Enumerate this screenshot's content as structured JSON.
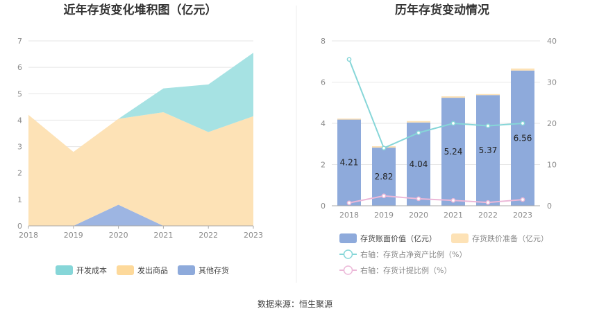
{
  "left_title": "近年存货变化堆积图（亿元）",
  "right_title": "历年存货变动情况",
  "source": "数据来源：恒生聚源",
  "chart_data": [
    {
      "type": "area",
      "stacked": true,
      "title": "近年存货变化堆积图（亿元）",
      "categories": [
        "2018",
        "2019",
        "2020",
        "2021",
        "2022",
        "2023"
      ],
      "ylim": [
        0,
        7
      ],
      "yticks": [
        "0",
        "1",
        "2",
        "3",
        "4",
        "5",
        "6",
        "7"
      ],
      "series": [
        {
          "name": "其他存货",
          "color": "#9db5e2",
          "values": [
            0,
            0,
            0.8,
            0,
            0,
            0
          ]
        },
        {
          "name": "发出商品",
          "color": "#fde2b6",
          "values": [
            4.2,
            2.8,
            3.25,
            4.3,
            3.55,
            4.15
          ]
        },
        {
          "name": "开发成本",
          "color": "#a6e2e3",
          "values": [
            0,
            0,
            0,
            0.9,
            1.8,
            2.4
          ]
        }
      ],
      "legend": [
        {
          "name": "开发成本",
          "color": "#86d6d8"
        },
        {
          "name": "发出商品",
          "color": "#fdd99b"
        },
        {
          "name": "其他存货",
          "color": "#8eaadb"
        }
      ],
      "grid": true,
      "legend_position": "bottom"
    },
    {
      "type": "bar",
      "title": "历年存货变动情况",
      "categories": [
        "2018",
        "2019",
        "2020",
        "2021",
        "2022",
        "2023"
      ],
      "ylim": [
        0,
        8
      ],
      "yticks": [
        "0",
        "2",
        "4",
        "6",
        "8"
      ],
      "y2lim": [
        0,
        40
      ],
      "y2ticks": [
        "0",
        "10",
        "20",
        "30",
        "40"
      ],
      "bar_series": [
        {
          "name": "存货账面价值（亿元）",
          "color": "#8eaadb",
          "values": [
            4.21,
            2.82,
            4.04,
            5.24,
            5.37,
            6.56
          ],
          "labels": [
            "4.21",
            "2.82",
            "4.04",
            "5.24",
            "5.37",
            "6.56"
          ]
        },
        {
          "name": "存货跌价准备（亿元）",
          "color": "#fde2b6",
          "values": [
            0.02,
            0.07,
            0.07,
            0.07,
            0.05,
            0.1
          ]
        }
      ],
      "line_series": [
        {
          "name": "右轴：存货占净资产比例（%）",
          "color": "#86d6d8",
          "values": [
            35.5,
            14.0,
            17.7,
            20.0,
            19.4,
            20.0
          ]
        },
        {
          "name": "右轴：存货计提比例（%）",
          "color": "#ecb8d8",
          "values": [
            0.7,
            2.4,
            1.7,
            1.3,
            0.8,
            1.5
          ]
        }
      ],
      "grid": true,
      "legend_position": "bottom"
    }
  ]
}
